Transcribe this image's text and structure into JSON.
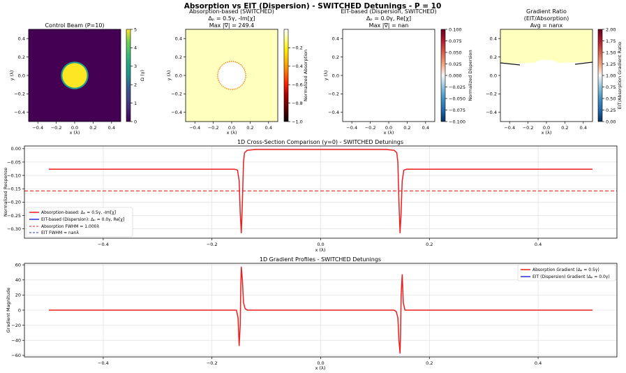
{
  "suptitle": "Absorption vs EIT (Dispersion) - SWITCHED Detunings - P = 10",
  "colors": {
    "red": "#ee1c1c",
    "blue": "#1f32d6",
    "viridis_bg": "#440154",
    "viridis_fg": "#fde725",
    "cream": "#ffffbe"
  },
  "chart_data": [
    {
      "id": "panel1",
      "type": "heatmap",
      "title": "Control Beam (P=10)",
      "xlabel": "x (λ)",
      "ylabel": "y (λ)",
      "xlim": [
        -0.5,
        0.5
      ],
      "ylim": [
        -0.5,
        0.5
      ],
      "x_ticks": [
        "−0.4",
        "−0.2",
        "0.0",
        "0.2",
        "0.4"
      ],
      "y_ticks": [
        "−0.4",
        "−0.2",
        "0.0",
        "0.2",
        "0.4"
      ],
      "colorbar": {
        "label": "Ω (γ)",
        "range": [
          0,
          5
        ],
        "ticks": [
          "0",
          "1",
          "2",
          "3",
          "4",
          "5"
        ],
        "colormap": "viridis"
      },
      "disk": {
        "radius": 0.15,
        "value": 5,
        "background": 0
      }
    },
    {
      "id": "panel2",
      "type": "heatmap",
      "title": [
        "Absorption-based (SWITCHED)",
        "Δₚ = 0.5γ, -Im[χ]",
        "Max |∇| = 249.4"
      ],
      "xlabel": "x (λ)",
      "ylabel": "y (λ)",
      "xlim": [
        -0.5,
        0.5
      ],
      "ylim": [
        -0.5,
        0.5
      ],
      "x_ticks": [
        "−0.4",
        "−0.2",
        "0.0",
        "0.2",
        "0.4"
      ],
      "y_ticks": [
        "−0.4",
        "−0.2",
        "0.0",
        "0.2",
        "0.4"
      ],
      "colorbar": {
        "label": "Normalized Absorption",
        "range": [
          -1.0,
          0.0
        ],
        "ticks": [
          "−0.2",
          "−0.4",
          "−0.6",
          "−0.8",
          "−1.0"
        ],
        "colormap": "hot"
      },
      "disk": {
        "radius": 0.15,
        "value": 0.0,
        "background": -0.077
      }
    },
    {
      "id": "panel3",
      "type": "heatmap",
      "title": [
        "EIT-based (Dispersion, SWITCHED)",
        "Δₚ = 0.0γ, Re[χ]",
        "Max |∇| = nan"
      ],
      "xlabel": "x (λ)",
      "ylabel": "y (λ)",
      "xlim": [
        -0.5,
        0.5
      ],
      "ylim": [
        -0.5,
        0.5
      ],
      "x_ticks": [
        "−0.4",
        "−0.2",
        "0.0",
        "0.2",
        "0.4"
      ],
      "y_ticks": [
        "−0.4",
        "−0.2",
        "0.0",
        "0.2",
        "0.4"
      ],
      "colorbar": {
        "label": "Normalized Dispersion",
        "range": [
          -0.1,
          0.1
        ],
        "ticks": [
          "0.100",
          "0.075",
          "0.050",
          "0.025",
          "0.000",
          "−0.025",
          "−0.050",
          "−0.075",
          "−0.100"
        ],
        "colormap": "RdBu_r"
      }
    },
    {
      "id": "panel4",
      "type": "heatmap",
      "title": [
        "Gradient Ratio",
        "(EIT/Absorption)",
        "Avg = nanx"
      ],
      "xlabel": "x (λ)",
      "ylabel": "",
      "xlim": [
        -0.5,
        0.5
      ],
      "ylim": [
        -0.5,
        0.5
      ],
      "x_ticks": [
        "−0.4",
        "−0.2",
        "0.0",
        "0.2",
        "0.4"
      ],
      "y_ticks": [
        "−0.4",
        "−0.2",
        "0.0",
        "0.2",
        "0.4"
      ],
      "colorbar": {
        "label": "EIT/Absorption Gradient Ratio",
        "range": [
          0,
          2
        ],
        "ticks": [
          "2.00",
          "1.75",
          "1.50",
          "1.25",
          "1.00",
          "0.75",
          "0.50",
          "0.25",
          "0.00"
        ],
        "colormap": "RdBu_r"
      },
      "band": {
        "y_from": 0.13,
        "y_to": 0.5
      }
    },
    {
      "id": "crosssection",
      "type": "line",
      "title": "1D Cross-Section Comparison (y=0) - SWITCHED Detunings",
      "xlabel": "x (λ)",
      "ylabel": "Normalized Response",
      "xlim": [
        -0.545,
        0.545
      ],
      "ylim": [
        -0.335,
        0.01
      ],
      "x_ticks": [
        -0.4,
        -0.2,
        0.0,
        0.2,
        0.4
      ],
      "x_tick_labels": [
        "−0.4",
        "−0.2",
        "0.0",
        "0.2",
        "0.4"
      ],
      "y_ticks": [
        0.0,
        -0.05,
        -0.1,
        -0.15,
        -0.2,
        -0.25,
        -0.3
      ],
      "y_tick_labels": [
        "0.00",
        "−0.05",
        "−0.10",
        "−0.15",
        "−0.20",
        "−0.25",
        "−0.30"
      ],
      "legend": [
        "Absorption-based: Δₚ = 0.5γ, -Im[χ]",
        "EIT-based (Dispersion): Δₚ = 0.0γ, Re[χ]",
        "Absorption FWHM = 1.000λ",
        "EIT FWHM = nanλ"
      ],
      "series": [
        {
          "name": "Absorption-based: Δₚ = 0.5γ, -Im[χ]",
          "points": [
            [
              -0.5,
              -0.077
            ],
            [
              -0.158,
              -0.077
            ],
            [
              -0.153,
              -0.08
            ],
            [
              -0.15,
              -0.12
            ],
            [
              -0.148,
              -0.24
            ],
            [
              -0.146,
              -0.315
            ],
            [
              -0.144,
              -0.2
            ],
            [
              -0.142,
              -0.05
            ],
            [
              -0.14,
              -0.015
            ],
            [
              -0.135,
              -0.006
            ],
            [
              -0.12,
              -0.003
            ],
            [
              0.12,
              -0.003
            ],
            [
              0.135,
              -0.006
            ],
            [
              0.14,
              -0.015
            ],
            [
              0.142,
              -0.05
            ],
            [
              0.144,
              -0.2
            ],
            [
              0.146,
              -0.315
            ],
            [
              0.148,
              -0.24
            ],
            [
              0.15,
              -0.12
            ],
            [
              0.153,
              -0.08
            ],
            [
              0.158,
              -0.077
            ],
            [
              0.5,
              -0.077
            ]
          ]
        },
        {
          "name": "EIT-based (Dispersion): Δₚ = 0.0γ, Re[χ]",
          "points": []
        }
      ],
      "hlines": [
        {
          "name": "Absorption FWHM = 1.000λ",
          "y": -0.158
        }
      ]
    },
    {
      "id": "gradient",
      "type": "line",
      "title": "1D Gradient Profiles - SWITCHED Detunings",
      "xlabel": "x (λ)",
      "ylabel": "Gradient Magnitude",
      "xlim": [
        -0.545,
        0.545
      ],
      "ylim": [
        -62,
        62
      ],
      "x_ticks": [
        -0.4,
        -0.2,
        0.0,
        0.2,
        0.4
      ],
      "x_tick_labels": [
        "−0.4",
        "−0.2",
        "0.0",
        "0.2",
        "0.4"
      ],
      "y_ticks": [
        60,
        40,
        20,
        0,
        -20,
        -40,
        -60
      ],
      "y_tick_labels": [
        "60",
        "40",
        "20",
        "0",
        "−20",
        "−40",
        "−60"
      ],
      "legend": [
        "Absorption Gradient (Δₚ = 0.5γ)",
        "EIT (Dispersion) Gradient (Δₚ = 0.0γ)"
      ],
      "series": [
        {
          "name": "Absorption Gradient (Δₚ = 0.5γ)",
          "points": [
            [
              -0.5,
              0
            ],
            [
              -0.155,
              0
            ],
            [
              -0.152,
              -10
            ],
            [
              -0.15,
              -47
            ],
            [
              -0.148,
              -20
            ],
            [
              -0.147,
              30
            ],
            [
              -0.146,
              57
            ],
            [
              -0.144,
              40
            ],
            [
              -0.142,
              10
            ],
            [
              -0.139,
              2
            ],
            [
              -0.135,
              0
            ],
            [
              0.135,
              0
            ],
            [
              0.139,
              -2
            ],
            [
              0.142,
              -10
            ],
            [
              0.144,
              -40
            ],
            [
              0.146,
              -57
            ],
            [
              0.147,
              -30
            ],
            [
              0.148,
              20
            ],
            [
              0.15,
              47
            ],
            [
              0.152,
              10
            ],
            [
              0.155,
              0
            ],
            [
              0.5,
              0
            ]
          ]
        },
        {
          "name": "EIT (Dispersion) Gradient (Δₚ = 0.0γ)",
          "points": []
        }
      ]
    }
  ]
}
